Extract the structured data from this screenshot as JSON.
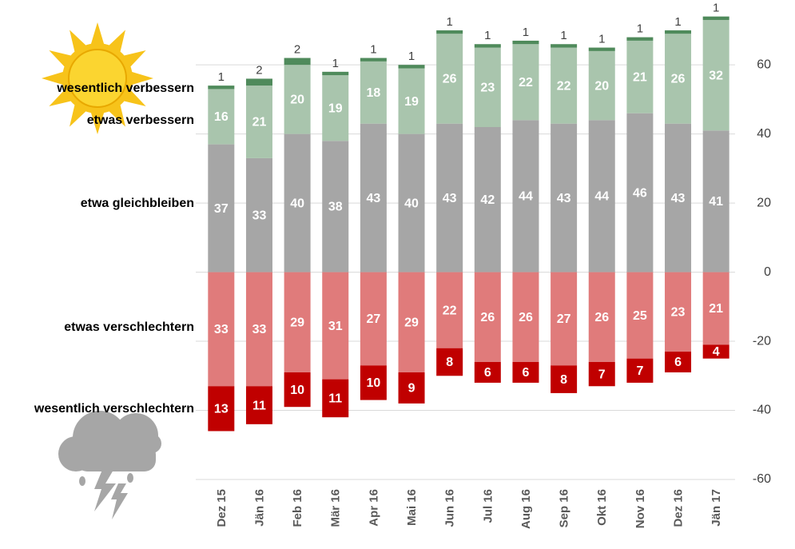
{
  "chart_data": {
    "type": "stacked_bar",
    "categories": [
      "Dez 15",
      "Jän 16",
      "Feb 16",
      "Mär 16",
      "Apr 16",
      "Mai 16",
      "Jun 16",
      "Jul 16",
      "Aug 16",
      "Sep 16",
      "Okt 16",
      "Nov 16",
      "Dez 16",
      "Jän 17"
    ],
    "series": [
      {
        "name": "etwa gleichbleiben",
        "color": "#a6a6a6",
        "values": [
          37,
          33,
          40,
          38,
          43,
          40,
          43,
          42,
          44,
          43,
          44,
          46,
          43,
          41
        ]
      },
      {
        "name": "etwas verbessern",
        "color": "#a9c5ad",
        "values": [
          16,
          21,
          20,
          19,
          18,
          19,
          26,
          23,
          22,
          22,
          20,
          21,
          26,
          32
        ]
      },
      {
        "name": "wesentlich verbessern",
        "color": "#4f8a5b",
        "values": [
          1,
          2,
          2,
          1,
          1,
          1,
          1,
          1,
          1,
          1,
          1,
          1,
          1,
          1
        ]
      },
      {
        "name": "etwas verschlechtern",
        "color": "#e07b7b",
        "values": [
          -33,
          -33,
          -29,
          -31,
          -27,
          -29,
          -22,
          -26,
          -26,
          -27,
          -26,
          -25,
          -23,
          -21
        ],
        "value_labels": [
          "33",
          "33",
          "29",
          "31",
          "27",
          "29",
          "22",
          "26",
          "26",
          "27",
          "26",
          "25",
          "23",
          "21"
        ]
      },
      {
        "name": "wesentlich verschlechtern",
        "color": "#c00000",
        "values": [
          -13,
          -11,
          -10,
          -11,
          -10,
          -9,
          -8,
          -6,
          -6,
          -8,
          -7,
          -7,
          -6,
          -4
        ],
        "value_labels": [
          "13",
          "11",
          "10",
          "11",
          "10",
          "9",
          "8",
          "6",
          "6",
          "8",
          "7",
          "7",
          "6",
          "4"
        ]
      }
    ],
    "ylim": [
      -60,
      76
    ],
    "yticks": [
      -60,
      -40,
      -20,
      0,
      20,
      40,
      60
    ],
    "grid": true
  }
}
